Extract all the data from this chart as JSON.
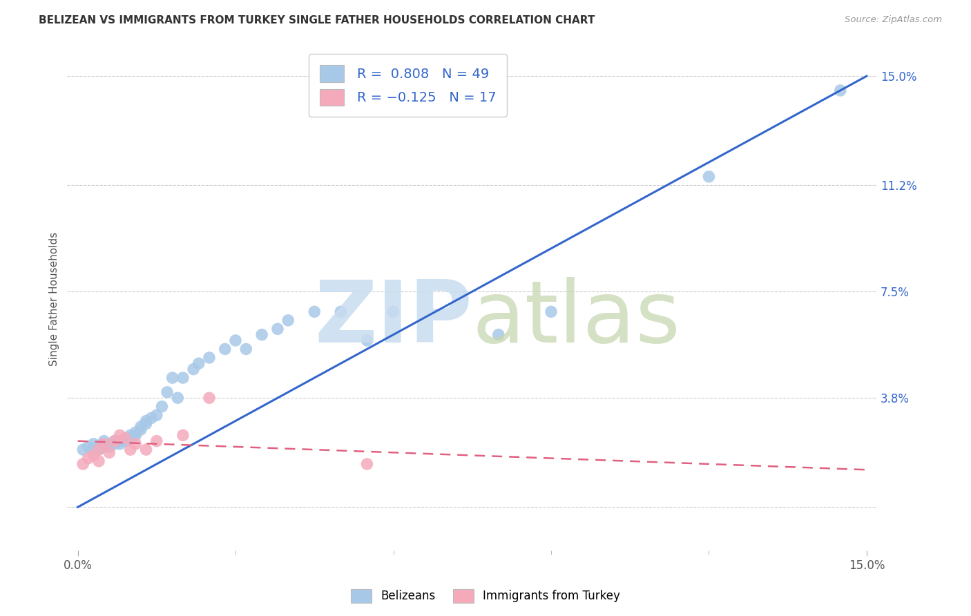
{
  "title": "BELIZEAN VS IMMIGRANTS FROM TURKEY SINGLE FATHER HOUSEHOLDS CORRELATION CHART",
  "source": "Source: ZipAtlas.com",
  "ylabel": "Single Father Households",
  "xlim": [
    0.0,
    0.15
  ],
  "ylim": [
    0.0,
    0.16
  ],
  "ytick_labels_right": [
    "15.0%",
    "11.2%",
    "7.5%",
    "3.8%",
    ""
  ],
  "ytick_vals_right": [
    0.15,
    0.112,
    0.075,
    0.038,
    0.0
  ],
  "blue_color": "#A8C8E8",
  "pink_color": "#F4AABB",
  "blue_line_color": "#3366CC",
  "pink_line_color": "#E06080",
  "legend_text_color": "#3366CC",
  "label_color": "#3366CC",
  "grid_color": "#CCCCCC",
  "title_color": "#333333",
  "source_color": "#999999",
  "blue_scatter_x": [
    0.001,
    0.002,
    0.003,
    0.003,
    0.004,
    0.004,
    0.005,
    0.005,
    0.005,
    0.006,
    0.006,
    0.007,
    0.007,
    0.008,
    0.008,
    0.009,
    0.009,
    0.01,
    0.01,
    0.011,
    0.011,
    0.012,
    0.012,
    0.013,
    0.013,
    0.014,
    0.015,
    0.016,
    0.017,
    0.018,
    0.019,
    0.02,
    0.022,
    0.023,
    0.025,
    0.028,
    0.03,
    0.032,
    0.035,
    0.038,
    0.04,
    0.045,
    0.05,
    0.055,
    0.06,
    0.08,
    0.09,
    0.12,
    0.145
  ],
  "blue_scatter_y": [
    0.02,
    0.021,
    0.022,
    0.02,
    0.02,
    0.021,
    0.022,
    0.021,
    0.023,
    0.021,
    0.022,
    0.022,
    0.023,
    0.023,
    0.022,
    0.024,
    0.023,
    0.024,
    0.025,
    0.025,
    0.026,
    0.027,
    0.028,
    0.029,
    0.03,
    0.031,
    0.032,
    0.035,
    0.04,
    0.045,
    0.038,
    0.045,
    0.048,
    0.05,
    0.052,
    0.055,
    0.058,
    0.055,
    0.06,
    0.062,
    0.065,
    0.068,
    0.068,
    0.058,
    0.068,
    0.06,
    0.068,
    0.115,
    0.145
  ],
  "pink_scatter_x": [
    0.001,
    0.002,
    0.003,
    0.004,
    0.004,
    0.005,
    0.006,
    0.007,
    0.008,
    0.009,
    0.01,
    0.011,
    0.013,
    0.015,
    0.02,
    0.025,
    0.055
  ],
  "pink_scatter_y": [
    0.015,
    0.017,
    0.018,
    0.02,
    0.016,
    0.022,
    0.019,
    0.023,
    0.025,
    0.024,
    0.02,
    0.022,
    0.02,
    0.023,
    0.025,
    0.038,
    0.015
  ],
  "blue_line_x": [
    0.0,
    0.15
  ],
  "blue_line_y": [
    0.0,
    0.15
  ],
  "pink_line_x": [
    0.0,
    0.15
  ],
  "pink_line_y": [
    0.023,
    0.013
  ],
  "watermark_zip_color": "#C8DCF0",
  "watermark_atlas_color": "#C8D8B0",
  "bottom_legend_labels": [
    "Belizeans",
    "Immigrants from Turkey"
  ]
}
